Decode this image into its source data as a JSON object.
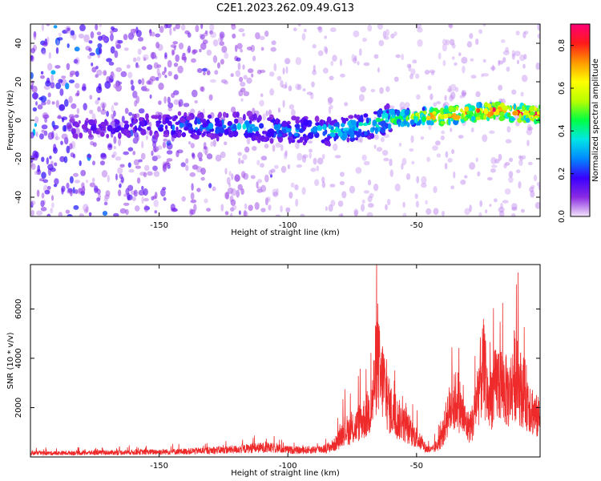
{
  "title": "C2E1.2023.262.09.49.G13",
  "chart_data": [
    {
      "type": "heatmap",
      "title": "C2E1.2023.262.09.49.G13",
      "xlabel": "Height of straight line (km)",
      "ylabel": "Frequency (Hz)",
      "xlim": [
        -200,
        -2
      ],
      "ylim": [
        -50,
        50
      ],
      "x_ticks": [
        -150,
        -100,
        -50
      ],
      "y_ticks": [
        -40,
        -20,
        0,
        20,
        40
      ],
      "colorbar": {
        "label": "Normalized spectral amplitude",
        "range": [
          0.0,
          0.9
        ],
        "ticks": [
          0.0,
          0.2,
          0.4,
          0.6,
          0.8
        ],
        "colormap": [
          "#f3e6fb",
          "#8b2be2",
          "#3a00ff",
          "#0088ff",
          "#00e6e6",
          "#00ff44",
          "#b8ff00",
          "#ffff00",
          "#ff9900",
          "#ff1a1a",
          "#ff0077"
        ]
      },
      "ridge": {
        "x": [
          -180,
          -160,
          -140,
          -120,
          -100,
          -90,
          -80,
          -70,
          -60,
          -50,
          -40,
          -30,
          -20,
          -10,
          -2
        ],
        "frequency": [
          -4,
          -3,
          -3,
          -3,
          -5,
          -6,
          -6,
          -3,
          1,
          2,
          2,
          4,
          5,
          4,
          3
        ],
        "amplitude": [
          0.15,
          0.2,
          0.28,
          0.33,
          0.33,
          0.36,
          0.42,
          0.45,
          0.5,
          0.58,
          0.72,
          0.78,
          0.82,
          0.85,
          0.8
        ]
      }
    },
    {
      "type": "line",
      "xlabel": "Height of straight line (km)",
      "ylabel": "SNR (10 * v/v)",
      "xlim": [
        -200,
        -2
      ],
      "ylim": [
        0,
        7800
      ],
      "x_ticks": [
        -150,
        -100,
        -50
      ],
      "y_ticks": [
        2000,
        4000,
        6000
      ],
      "color": "#ee2a2a",
      "series": [
        {
          "x": [
            -200,
            -190,
            -180,
            -170,
            -160,
            -150,
            -140,
            -130,
            -120,
            -115,
            -110,
            -105,
            -100,
            -95,
            -90,
            -85,
            -82,
            -80,
            -78,
            -75,
            -72,
            -70,
            -68,
            -67,
            -66,
            -65,
            -64,
            -63,
            -62,
            -61,
            -60,
            -58,
            -56,
            -54,
            -52,
            -50,
            -48,
            -46,
            -44,
            -42,
            -40,
            -38,
            -36,
            -34,
            -32,
            -30,
            -28,
            -26,
            -24,
            -22,
            -20,
            -18,
            -16,
            -14,
            -12,
            -10,
            -8,
            -6,
            -4,
            -2
          ],
          "values": [
            200,
            190,
            210,
            220,
            240,
            260,
            280,
            330,
            380,
            430,
            470,
            450,
            360,
            330,
            370,
            430,
            600,
            900,
            1400,
            1300,
            1800,
            2000,
            2400,
            2900,
            4300,
            5200,
            3600,
            4000,
            3300,
            2700,
            2400,
            2000,
            1800,
            1550,
            1200,
            1000,
            650,
            400,
            350,
            600,
            1000,
            2200,
            2600,
            3000,
            2000,
            1500,
            1800,
            3500,
            4500,
            2800,
            3400,
            3900,
            3500,
            3100,
            4200,
            3600,
            3200,
            2700,
            2100,
            1900
          ]
        }
      ]
    }
  ]
}
